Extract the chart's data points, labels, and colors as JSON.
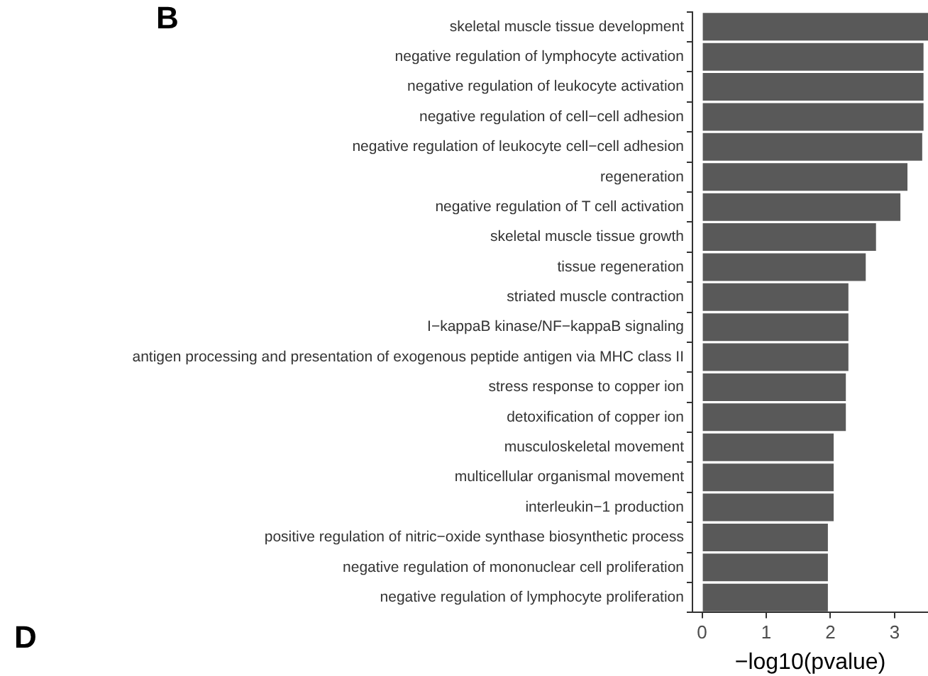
{
  "chart_data": {
    "type": "bar",
    "orientation": "horizontal",
    "xlabel": "−log10(pvalue)",
    "categories": [
      "skeletal muscle tissue development",
      "negative regulation of lymphocyte activation",
      "negative regulation of leukocyte activation",
      "negative regulation of cell−cell adhesion",
      "negative regulation of leukocyte cell−cell adhesion",
      "regeneration",
      "negative regulation of T cell activation",
      "skeletal muscle tissue growth",
      "tissue regeneration",
      "striated muscle contraction",
      "I−kappaB kinase/NF−kappaB signaling",
      "antigen processing and presentation of exogenous peptide antigen via MHC class II",
      "stress response to copper ion",
      "detoxification of copper ion",
      "musculoskeletal movement",
      "multicellular organismal movement",
      "interleukin−1 production",
      "positive regulation of nitric−oxide synthase biosynthetic process",
      "negative regulation of mononuclear cell proliferation",
      "negative regulation of lymphocyte proliferation"
    ],
    "values": [
      3.52,
      3.45,
      3.45,
      3.45,
      3.43,
      3.2,
      3.09,
      2.71,
      2.55,
      2.28,
      2.28,
      2.28,
      2.24,
      2.24,
      2.05,
      2.05,
      2.05,
      1.96,
      1.96,
      1.96
    ],
    "color": "#595959",
    "xlim": [
      -0.15,
      3.52
    ],
    "xticks": [
      0,
      1,
      2,
      3
    ],
    "grid": false,
    "legend": false,
    "annotations": [
      "B",
      "D"
    ]
  }
}
